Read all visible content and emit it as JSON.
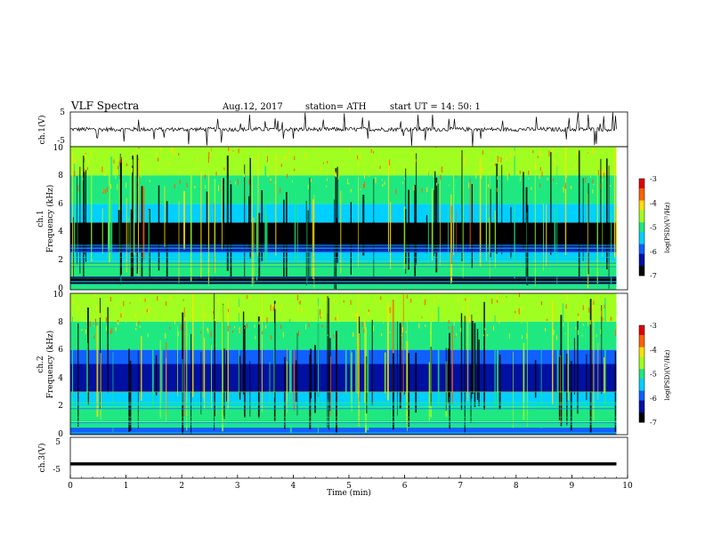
{
  "header": {
    "title": "VLF  Spectra",
    "date": "Aug.12, 2017",
    "station": "station= ATH",
    "start": "start  UT  =    14: 50: 1"
  },
  "colorbar": {
    "label": "log(PSD)(V²/Hz)",
    "ticks": [
      "-3",
      "-4",
      "-5",
      "-6",
      "-7"
    ],
    "range": [
      -7,
      -3
    ],
    "colors": [
      "#000000",
      "#0010a0",
      "#1060ff",
      "#00d0ff",
      "#20e880",
      "#a0ff20",
      "#ffe000",
      "#ff6000",
      "#e00000",
      "#ffffff"
    ]
  },
  "chart_data": [
    {
      "type": "line",
      "panel": "ch1-waveform",
      "ylabel": "ch.1(V)",
      "ylim": [
        -5,
        5
      ],
      "yticks": [
        "5",
        "-5"
      ],
      "xlim": [
        0,
        10
      ],
      "series": [
        {
          "baseline": 0,
          "noise_range": [
            -1,
            1
          ],
          "x_end": 9.8
        }
      ]
    },
    {
      "type": "heatmap",
      "panel": "ch1-spectrogram",
      "ylabel_channel": "ch.1",
      "ylabel": "Frequency  (kHz)",
      "ylim": [
        0,
        10
      ],
      "yticks": [
        "0",
        "2",
        "4",
        "6",
        "8",
        "10"
      ],
      "xlim": [
        0,
        9.8
      ],
      "bands": [
        {
          "from": 0,
          "to": 0.4,
          "level": -5.2
        },
        {
          "from": 0.4,
          "to": 0.9,
          "level": -6.6
        },
        {
          "from": 0.9,
          "to": 2.0,
          "level": -5.0
        },
        {
          "from": 2.0,
          "to": 2.6,
          "level": -5.3
        },
        {
          "from": 2.6,
          "to": 3.2,
          "level": -6.2
        },
        {
          "from": 3.2,
          "to": 4.7,
          "level": -6.8
        },
        {
          "from": 4.7,
          "to": 6.0,
          "level": -5.6
        },
        {
          "from": 6.0,
          "to": 8.0,
          "level": -4.9
        },
        {
          "from": 8.0,
          "to": 10.0,
          "level": -4.4
        }
      ]
    },
    {
      "type": "heatmap",
      "panel": "ch2-spectrogram",
      "ylabel_channel": "ch.2",
      "ylabel": "Frequency  (kHz)",
      "ylim": [
        0,
        10
      ],
      "yticks": [
        "0",
        "2",
        "4",
        "6",
        "8",
        "10"
      ],
      "xlim": [
        0,
        9.8
      ],
      "bands": [
        {
          "from": 0,
          "to": 0.5,
          "level": -5.8
        },
        {
          "from": 0.5,
          "to": 2.0,
          "level": -4.9
        },
        {
          "from": 2.0,
          "to": 3.0,
          "level": -5.6
        },
        {
          "from": 3.0,
          "to": 5.0,
          "level": -6.4
        },
        {
          "from": 5.0,
          "to": 6.0,
          "level": -5.8
        },
        {
          "from": 6.0,
          "to": 8.0,
          "level": -5.0
        },
        {
          "from": 8.0,
          "to": 10.0,
          "level": -4.5
        }
      ]
    },
    {
      "type": "line",
      "panel": "ch3-waveform",
      "ylabel": "ch.3(V)",
      "ylim": [
        -5,
        5
      ],
      "yticks": [
        "5",
        "-5"
      ],
      "xlim": [
        0,
        10
      ],
      "series": [
        {
          "baseline": -1.5,
          "x_end": 9.8
        }
      ]
    }
  ],
  "xaxis": {
    "label": "Time  (min)",
    "ticks": [
      "0",
      "1",
      "2",
      "3",
      "4",
      "5",
      "6",
      "7",
      "8",
      "9",
      "10"
    ],
    "range": [
      0,
      10
    ]
  }
}
